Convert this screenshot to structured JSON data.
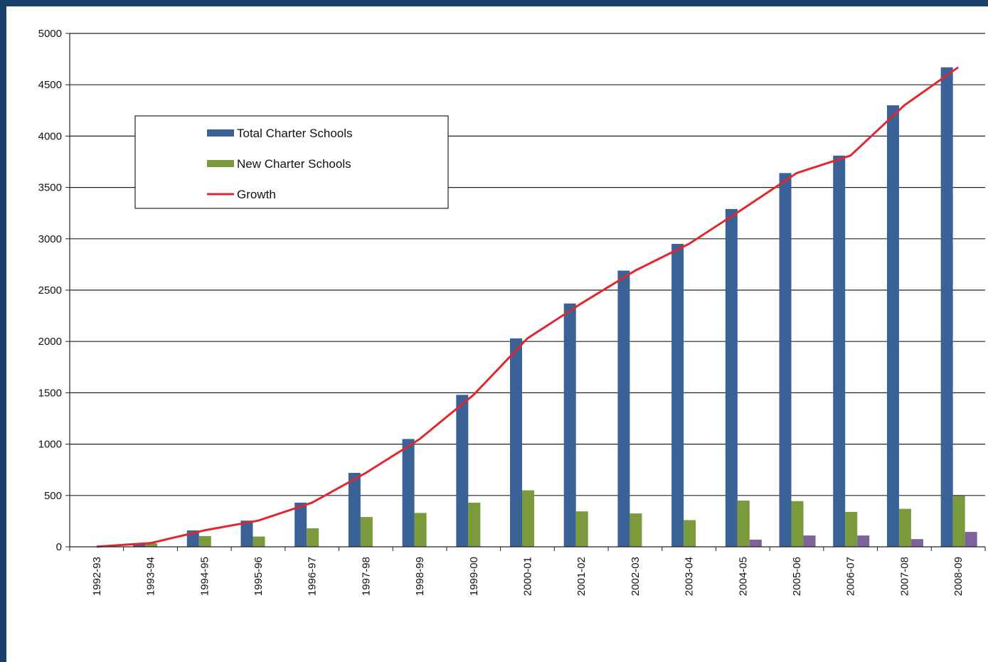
{
  "chart_data": {
    "type": "bar",
    "title": "",
    "xlabel": "",
    "ylabel": "",
    "ylim": [
      0,
      5000
    ],
    "yticks": [
      0,
      500,
      1000,
      1500,
      2000,
      2500,
      3000,
      3500,
      4000,
      4500,
      5000
    ],
    "grid": true,
    "legend_position": "top-left",
    "categories": [
      "1992-93",
      "1993-94",
      "1994-95",
      "1995-96",
      "1996-97",
      "1997-98",
      "1998-99",
      "1999-00",
      "2000-01",
      "2001-02",
      "2002-03",
      "2003-04",
      "2004-05",
      "2005-06",
      "2006-07",
      "2007-08",
      "2008-09"
    ],
    "series": [
      {
        "name": "Total Charter Schools",
        "kind": "bar",
        "color": "#3a6296",
        "values": [
          2,
          36,
          160,
          255,
          430,
          720,
          1050,
          1480,
          2030,
          2370,
          2690,
          2950,
          3290,
          3640,
          3810,
          4300,
          4670
        ]
      },
      {
        "name": "New Charter Schools",
        "kind": "bar",
        "color": "#7a9a3c",
        "values": [
          0,
          34,
          105,
          100,
          180,
          290,
          330,
          430,
          550,
          345,
          325,
          260,
          450,
          445,
          340,
          370,
          495
        ]
      },
      {
        "kind": "bar",
        "color": "#7f619e",
        "values": [
          0,
          0,
          0,
          0,
          0,
          0,
          0,
          0,
          0,
          0,
          0,
          0,
          70,
          110,
          110,
          75,
          145
        ]
      },
      {
        "name": "Growth",
        "kind": "line",
        "color": "#e0282e",
        "values": [
          2,
          36,
          160,
          255,
          430,
          720,
          1050,
          1480,
          2030,
          2370,
          2690,
          2950,
          3290,
          3640,
          3810,
          4300,
          4670
        ]
      }
    ]
  }
}
